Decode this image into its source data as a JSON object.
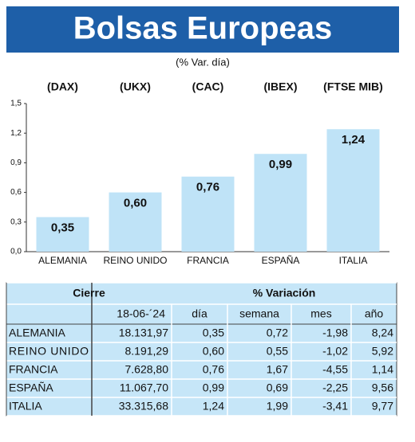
{
  "chart_data": {
    "type": "bar",
    "title": "Bolsas Europeas",
    "subtitle": "(% Var. día)",
    "categories": [
      "ALEMANIA",
      "REINO UNIDO",
      "FRANCIA",
      "ESPAÑA",
      "ITALIA"
    ],
    "index_labels": [
      "(DAX)",
      "(UKX)",
      "(CAC)",
      "(IBEX)",
      "(FTSE MIB)"
    ],
    "values": [
      0.35,
      0.6,
      0.76,
      0.99,
      1.24
    ],
    "value_labels": [
      "0,35",
      "0,60",
      "0,76",
      "0,99",
      "1,24"
    ],
    "color": "#bfe3f7",
    "ylim": [
      0,
      1.5
    ],
    "yticks": [
      {
        "value": 0,
        "label": "0,0"
      },
      {
        "value": 0.3,
        "label": "0,3"
      },
      {
        "value": 0.6,
        "label": "0,6"
      },
      {
        "value": 0.9,
        "label": "0,9"
      },
      {
        "value": 1.2,
        "label": "1,2"
      },
      {
        "value": 1.5,
        "label": "1,5"
      }
    ]
  },
  "table": {
    "group_headers": [
      "Cierre",
      "% Variación"
    ],
    "headers": [
      "18-06-´24",
      "día",
      "semana",
      "mes",
      "año"
    ],
    "rows": [
      [
        "ALEMANIA",
        "18.131,97",
        "0,35",
        "0,72",
        "-1,98",
        "8,24"
      ],
      [
        "REINO UNIDO",
        "8.191,29",
        "0,60",
        "0,55",
        "-1,02",
        "5,92"
      ],
      [
        "FRANCIA",
        "7.628,80",
        "0,76",
        "1,67",
        "-4,55",
        "1,14"
      ],
      [
        "ESPAÑA",
        "11.067,70",
        "0,99",
        "0,69",
        "-2,25",
        "9,56"
      ],
      [
        "ITALIA",
        "33.315,68",
        "1,24",
        "1,99",
        "-3,41",
        "9,77"
      ]
    ]
  }
}
